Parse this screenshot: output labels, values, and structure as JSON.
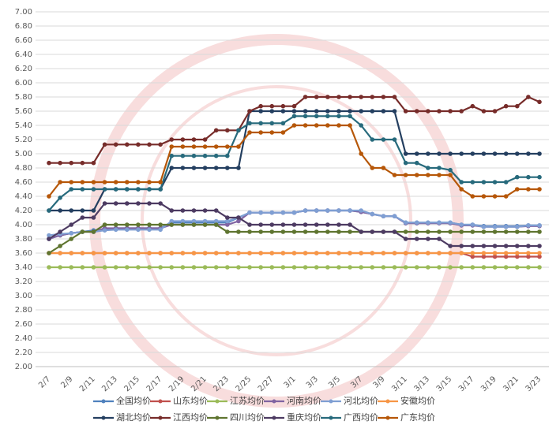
{
  "chart_data": {
    "type": "line",
    "categories": [
      "2/7",
      null,
      "2/9",
      null,
      "2/11",
      null,
      "2/13",
      null,
      "2/15",
      null,
      "2/17",
      null,
      "2/19",
      null,
      "2/21",
      null,
      "2/23",
      null,
      "2/25",
      null,
      "2/27",
      null,
      "3/1",
      null,
      "3/3",
      null,
      "3/5",
      null,
      "3/7",
      null,
      "3/9",
      null,
      "3/11",
      null,
      "3/13",
      null,
      "3/15",
      null,
      "3/17",
      null,
      "3/19",
      null,
      "3/21",
      null,
      "3/23"
    ],
    "ylim": [
      2,
      7
    ],
    "yticks": [
      {
        "value": 2,
        "label": "2.00"
      },
      {
        "value": 2.2,
        "label": "2.20"
      },
      {
        "value": 2.4,
        "label": "2.40"
      },
      {
        "value": 2.6,
        "label": "2.60"
      },
      {
        "value": 2.8,
        "label": "2.80"
      },
      {
        "value": 3,
        "label": "3.00"
      },
      {
        "value": 3.2,
        "label": "3.20"
      },
      {
        "value": 3.4,
        "label": "3.40"
      },
      {
        "value": 3.6,
        "label": "3.60"
      },
      {
        "value": 3.8,
        "label": "3.80"
      },
      {
        "value": 4,
        "label": "4.00"
      },
      {
        "value": 4.2,
        "label": "4.20"
      },
      {
        "value": 4.4,
        "label": "4.40"
      },
      {
        "value": 4.6,
        "label": "4.60"
      },
      {
        "value": 4.8,
        "label": "4.80"
      },
      {
        "value": 5,
        "label": "5.00"
      },
      {
        "value": 5.2,
        "label": "5.20"
      },
      {
        "value": 5.4,
        "label": "5.40"
      },
      {
        "value": 5.6,
        "label": "5.60"
      },
      {
        "value": 5.8,
        "label": "5.80"
      },
      {
        "value": 6,
        "label": "6.00"
      },
      {
        "value": 6.2,
        "label": "6.20"
      },
      {
        "value": 6.4,
        "label": "6.40"
      },
      {
        "value": 6.6,
        "label": "6.60"
      },
      {
        "value": 6.8,
        "label": "6.80"
      },
      {
        "value": 7,
        "label": "7.00"
      }
    ],
    "grid": true,
    "legend": "bottom",
    "series": [
      {
        "name": "全国均价",
        "color": "#4f81bd",
        "values": [
          3.8,
          3.85,
          3.88,
          3.9,
          3.92,
          3.93,
          3.95,
          3.95,
          3.95,
          3.95,
          3.95,
          4.03,
          4.03,
          4.03,
          4.03,
          4.03,
          4.03,
          4.1,
          4.17,
          4.17,
          4.17,
          4.17,
          4.17,
          4.2,
          4.2,
          4.2,
          4.2,
          4.2,
          4.18,
          4.15,
          4.12,
          4.12,
          4.03,
          4.03,
          4.03,
          4.03,
          4.03,
          4.0,
          4.0,
          3.98,
          3.98,
          3.98,
          3.98,
          3.99,
          3.99
        ]
      },
      {
        "name": "山东均价",
        "color": "#c0504d",
        "values": [
          3.6,
          3.6,
          3.6,
          3.6,
          3.6,
          3.6,
          3.6,
          3.6,
          3.6,
          3.6,
          3.6,
          3.6,
          3.6,
          3.6,
          3.6,
          3.6,
          3.6,
          3.6,
          3.6,
          3.6,
          3.6,
          3.6,
          3.6,
          3.6,
          3.6,
          3.6,
          3.6,
          3.6,
          3.6,
          3.6,
          3.6,
          3.6,
          3.6,
          3.6,
          3.6,
          3.6,
          3.6,
          3.6,
          3.55,
          3.55,
          3.55,
          3.55,
          3.55,
          3.55,
          3.55
        ]
      },
      {
        "name": "江苏均价",
        "color": "#9bbb59",
        "values": [
          3.4,
          3.4,
          3.4,
          3.4,
          3.4,
          3.4,
          3.4,
          3.4,
          3.4,
          3.4,
          3.4,
          3.4,
          3.4,
          3.4,
          3.4,
          3.4,
          3.4,
          3.4,
          3.4,
          3.4,
          3.4,
          3.4,
          3.4,
          3.4,
          3.4,
          3.4,
          3.4,
          3.4,
          3.4,
          3.4,
          3.4,
          3.4,
          3.4,
          3.4,
          3.4,
          3.4,
          3.4,
          3.4,
          3.4,
          3.4,
          3.4,
          3.4,
          3.4,
          3.4,
          3.4
        ]
      },
      {
        "name": "河南均价",
        "color": "#8064a2",
        "values": [
          3.8,
          3.85,
          3.88,
          3.9,
          3.9,
          3.95,
          3.95,
          3.95,
          3.95,
          3.95,
          3.95,
          4.0,
          4.0,
          4.0,
          4.0,
          4.0,
          4.0,
          4.05,
          4.17,
          4.17,
          4.17,
          4.17,
          4.17,
          4.2,
          4.2,
          4.2,
          4.2,
          4.2,
          4.18,
          4.15,
          4.12,
          4.12,
          4.02,
          4.02,
          4.02,
          4.02,
          4.02,
          3.99,
          3.99,
          3.97,
          3.97,
          3.97,
          3.97,
          3.98,
          3.98
        ]
      },
      {
        "name": "河北均价",
        "color": "#7f9fd3",
        "values": [
          3.85,
          3.87,
          3.88,
          3.9,
          3.9,
          3.92,
          3.93,
          3.93,
          3.93,
          3.93,
          3.93,
          4.05,
          4.05,
          4.05,
          4.05,
          4.05,
          4.05,
          4.1,
          4.17,
          4.17,
          4.17,
          4.17,
          4.17,
          4.2,
          4.2,
          4.2,
          4.2,
          4.2,
          4.2,
          4.15,
          4.12,
          4.12,
          4.03,
          4.03,
          4.03,
          4.03,
          4.03,
          4.0,
          4.0,
          3.97,
          3.97,
          3.97,
          3.97,
          3.99,
          3.99
        ]
      },
      {
        "name": "安徽均价",
        "color": "#f79646",
        "values": [
          3.6,
          3.6,
          3.6,
          3.6,
          3.6,
          3.6,
          3.6,
          3.6,
          3.6,
          3.6,
          3.6,
          3.6,
          3.6,
          3.6,
          3.6,
          3.6,
          3.6,
          3.6,
          3.6,
          3.6,
          3.6,
          3.6,
          3.6,
          3.6,
          3.6,
          3.6,
          3.6,
          3.6,
          3.6,
          3.6,
          3.6,
          3.6,
          3.6,
          3.6,
          3.6,
          3.6,
          3.6,
          3.6,
          3.6,
          3.6,
          3.6,
          3.6,
          3.6,
          3.6,
          3.6
        ]
      },
      {
        "name": "湖北均价",
        "color": "#243f60",
        "values": [
          4.2,
          4.2,
          4.2,
          4.2,
          4.2,
          4.5,
          4.5,
          4.5,
          4.5,
          4.5,
          4.5,
          4.8,
          4.8,
          4.8,
          4.8,
          4.8,
          4.8,
          4.8,
          5.6,
          5.6,
          5.6,
          5.6,
          5.6,
          5.6,
          5.6,
          5.6,
          5.6,
          5.6,
          5.6,
          5.6,
          5.6,
          5.6,
          5.0,
          5.0,
          5.0,
          5.0,
          5.0,
          5.0,
          5.0,
          5.0,
          5.0,
          5.0,
          5.0,
          5.0,
          5.0
        ]
      },
      {
        "name": "江西均价",
        "color": "#772c2a",
        "values": [
          4.87,
          4.87,
          4.87,
          4.87,
          4.87,
          5.13,
          5.13,
          5.13,
          5.13,
          5.13,
          5.13,
          5.2,
          5.2,
          5.2,
          5.2,
          5.33,
          5.33,
          5.33,
          5.6,
          5.67,
          5.67,
          5.67,
          5.67,
          5.8,
          5.8,
          5.8,
          5.8,
          5.8,
          5.8,
          5.8,
          5.8,
          5.8,
          5.6,
          5.6,
          5.6,
          5.6,
          5.6,
          5.6,
          5.67,
          5.6,
          5.6,
          5.67,
          5.67,
          5.8,
          5.73
        ]
      },
      {
        "name": "四川均价",
        "color": "#5f7530",
        "values": [
          3.6,
          3.7,
          3.8,
          3.9,
          3.9,
          4.0,
          4.0,
          4.0,
          4.0,
          4.0,
          4.0,
          4.0,
          4.0,
          4.0,
          4.0,
          4.0,
          3.9,
          3.9,
          3.9,
          3.9,
          3.9,
          3.9,
          3.9,
          3.9,
          3.9,
          3.9,
          3.9,
          3.9,
          3.9,
          3.9,
          3.9,
          3.9,
          3.9,
          3.9,
          3.9,
          3.9,
          3.9,
          3.9,
          3.9,
          3.9,
          3.9,
          3.9,
          3.9,
          3.9,
          3.9
        ]
      },
      {
        "name": "重庆均价",
        "color": "#4d3b62",
        "values": [
          3.8,
          3.9,
          4.0,
          4.1,
          4.1,
          4.3,
          4.3,
          4.3,
          4.3,
          4.3,
          4.3,
          4.2,
          4.2,
          4.2,
          4.2,
          4.2,
          4.1,
          4.1,
          4.0,
          4.0,
          4.0,
          4.0,
          4.0,
          4.0,
          4.0,
          4.0,
          4.0,
          4.0,
          3.9,
          3.9,
          3.9,
          3.9,
          3.8,
          3.8,
          3.8,
          3.8,
          3.7,
          3.7,
          3.7,
          3.7,
          3.7,
          3.7,
          3.7,
          3.7,
          3.7
        ]
      },
      {
        "name": "广西均价",
        "color": "#276a7c",
        "values": [
          4.2,
          4.38,
          4.5,
          4.5,
          4.5,
          4.5,
          4.5,
          4.5,
          4.5,
          4.5,
          4.5,
          4.97,
          4.97,
          4.97,
          4.97,
          4.97,
          4.97,
          5.33,
          5.43,
          5.43,
          5.43,
          5.43,
          5.53,
          5.53,
          5.53,
          5.53,
          5.53,
          5.53,
          5.4,
          5.2,
          5.2,
          5.2,
          4.87,
          4.87,
          4.8,
          4.8,
          4.77,
          4.6,
          4.6,
          4.6,
          4.6,
          4.6,
          4.67,
          4.67,
          4.67
        ]
      },
      {
        "name": "广东均价",
        "color": "#b65708",
        "values": [
          4.4,
          4.6,
          4.6,
          4.6,
          4.6,
          4.6,
          4.6,
          4.6,
          4.6,
          4.6,
          4.6,
          5.1,
          5.1,
          5.1,
          5.1,
          5.1,
          5.1,
          5.1,
          5.3,
          5.3,
          5.3,
          5.3,
          5.4,
          5.4,
          5.4,
          5.4,
          5.4,
          5.4,
          5.0,
          4.8,
          4.8,
          4.7,
          4.7,
          4.7,
          4.7,
          4.7,
          4.7,
          4.5,
          4.4,
          4.4,
          4.4,
          4.4,
          4.5,
          4.5,
          4.5
        ]
      }
    ]
  }
}
